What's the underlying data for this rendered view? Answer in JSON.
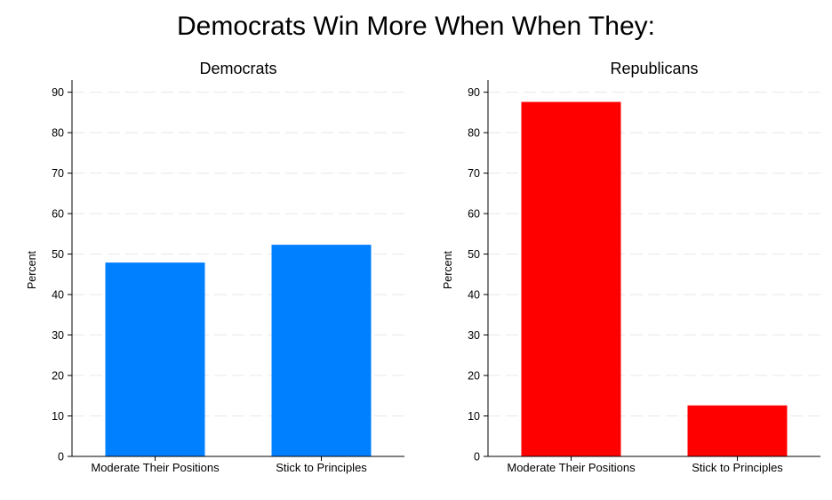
{
  "title": "Democrats Win More When When They:",
  "chart_data": [
    {
      "type": "bar",
      "title": "Democrats",
      "xlabel": "",
      "ylabel": "Percent",
      "categories": [
        "Moderate Their Positions",
        "Stick to Principles"
      ],
      "values": [
        47.9,
        52.3
      ],
      "ylim": [
        0,
        93
      ],
      "yticks": [
        0,
        10,
        20,
        30,
        40,
        50,
        60,
        70,
        80,
        90
      ],
      "grid": true,
      "color": "#0080ff"
    },
    {
      "type": "bar",
      "title": "Republicans",
      "xlabel": "",
      "ylabel": "Percent",
      "categories": [
        "Moderate Their Positions",
        "Stick to Principles"
      ],
      "values": [
        87.6,
        12.6
      ],
      "ylim": [
        0,
        93
      ],
      "yticks": [
        0,
        10,
        20,
        30,
        40,
        50,
        60,
        70,
        80,
        90
      ],
      "grid": true,
      "color": "#ff0000"
    }
  ]
}
